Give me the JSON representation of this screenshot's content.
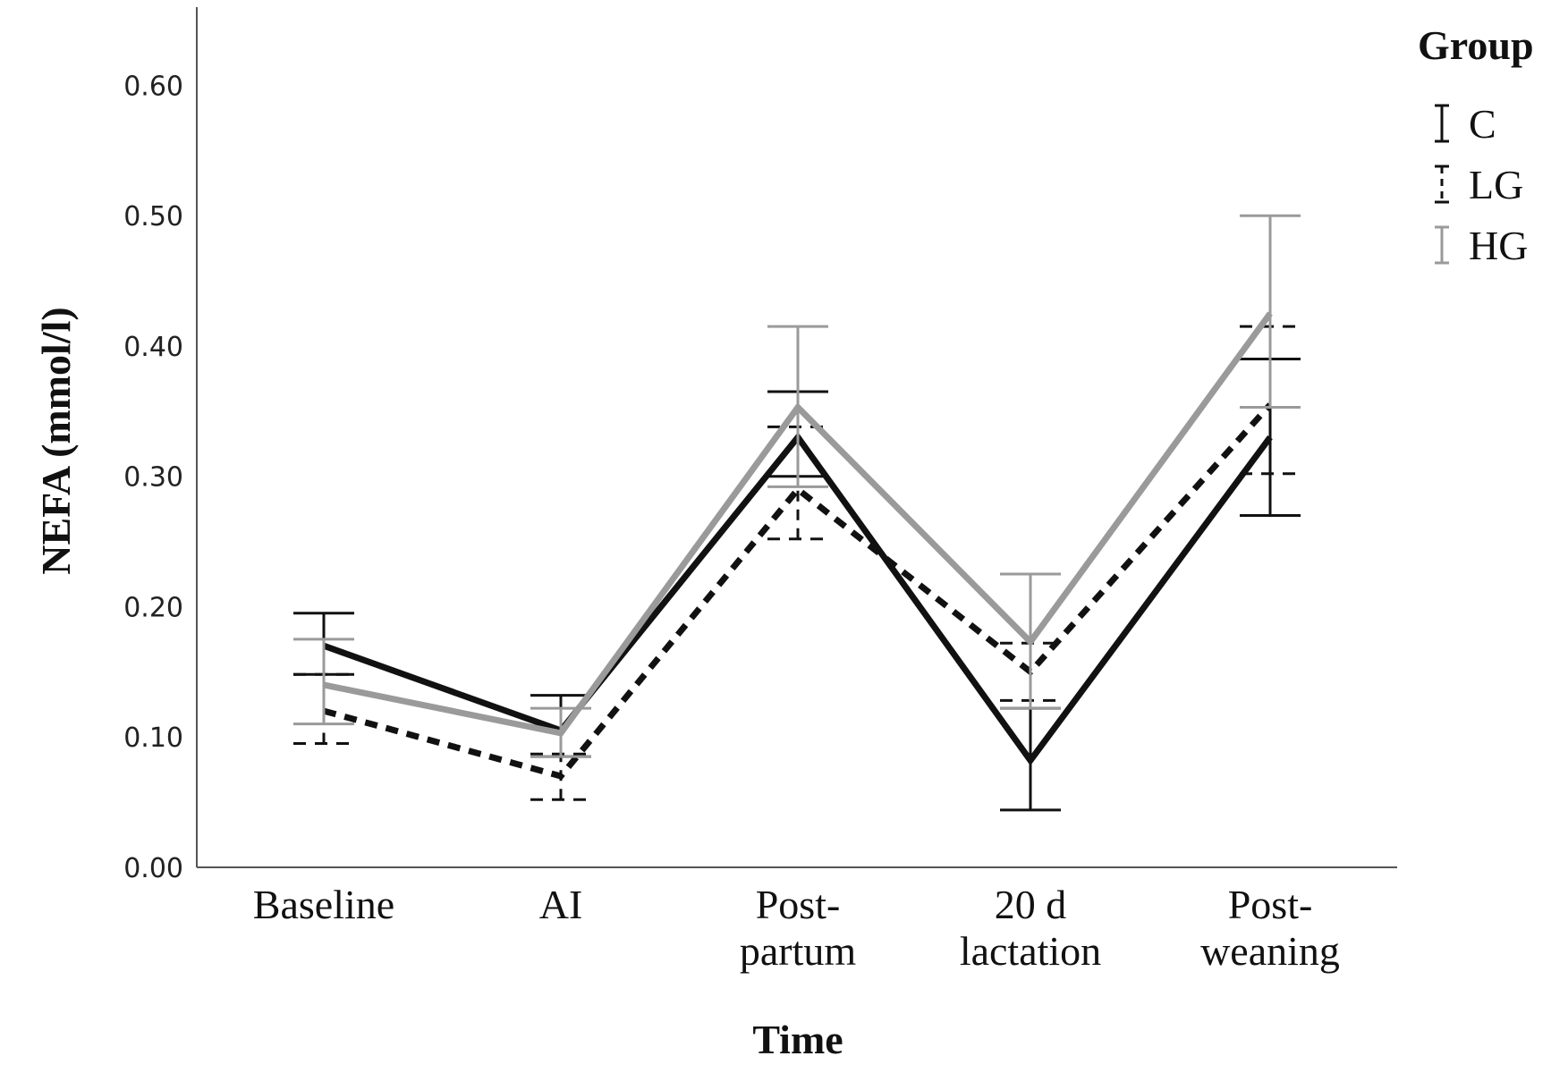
{
  "chart_data": {
    "type": "line",
    "title": "",
    "xlabel": "Time",
    "ylabel": "NEFA (mmol/l)",
    "ylim": [
      0,
      0.66
    ],
    "yticks": [
      "0.00",
      "0.10",
      "0.20",
      "0.30",
      "0.40",
      "0.50",
      "0.60"
    ],
    "ytick_values": [
      0,
      0.1,
      0.2,
      0.3,
      0.4,
      0.5,
      0.6
    ],
    "categories": [
      [
        "Baseline"
      ],
      [
        "AI"
      ],
      [
        "Post-",
        "partum"
      ],
      [
        "20 d",
        "lactation"
      ],
      [
        "Post-",
        "weaning"
      ]
    ],
    "grid": false,
    "legend": {
      "title": "Group",
      "position": "top-right"
    },
    "series": [
      {
        "name": "C",
        "color": "#111111",
        "style": "solid",
        "values": [
          0.17,
          0.105,
          0.33,
          0.082,
          0.33
        ],
        "err_low": [
          0.148,
          0.085,
          0.3,
          0.044,
          0.27
        ],
        "err_high": [
          0.195,
          0.132,
          0.365,
          0.122,
          0.39
        ]
      },
      {
        "name": "LG",
        "color": "#111111",
        "style": "dashed",
        "values": [
          0.12,
          0.07,
          0.29,
          0.15,
          0.355
        ],
        "err_low": [
          0.095,
          0.052,
          0.252,
          0.128,
          0.302
        ],
        "err_high": [
          0.148,
          0.087,
          0.338,
          0.172,
          0.415
        ]
      },
      {
        "name": "HG",
        "color": "#9a9a9a",
        "style": "solid",
        "values": [
          0.14,
          0.103,
          0.353,
          0.173,
          0.425
        ],
        "err_low": [
          0.11,
          0.085,
          0.292,
          0.122,
          0.353
        ],
        "err_high": [
          0.175,
          0.122,
          0.415,
          0.225,
          0.5
        ]
      }
    ]
  }
}
